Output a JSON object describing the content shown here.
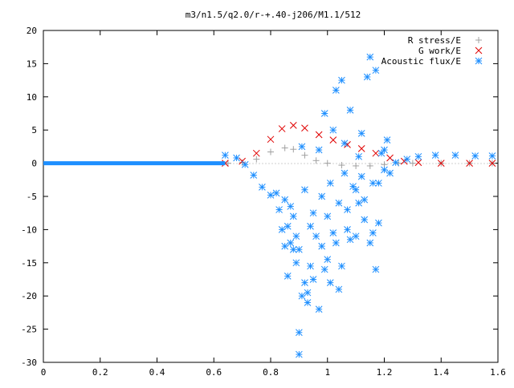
{
  "chart_data": {
    "type": "scatter",
    "title": "m3/n1.5/q2.0/r-+.40-j206/M1.1/512",
    "xlabel": "",
    "ylabel": "",
    "xlim": [
      0,
      1.6
    ],
    "ylim": [
      -30,
      20
    ],
    "x_ticks": [
      0,
      0.2,
      0.4,
      0.6,
      0.8,
      1,
      1.2,
      1.4,
      1.6
    ],
    "x_tick_labels": [
      "0",
      "0.2",
      "0.4",
      "0.6",
      "0.8",
      "1",
      "1.2",
      "1.4",
      "1.6"
    ],
    "y_ticks": [
      -30,
      -25,
      -20,
      -15,
      -10,
      -5,
      0,
      5,
      10,
      15,
      20
    ],
    "y_tick_labels": [
      "-30",
      "-25",
      "-20",
      "-15",
      "-10",
      "-5",
      "0",
      "5",
      "10",
      "15",
      "20"
    ],
    "grid": false,
    "legend_position": "top-right",
    "series": [
      {
        "name": "R stress/E",
        "marker": "plus",
        "color": "#a0a0a0",
        "points": [
          [
            0.65,
            0.0
          ],
          [
            0.7,
            0.1
          ],
          [
            0.75,
            0.6
          ],
          [
            0.8,
            1.7
          ],
          [
            0.85,
            2.3
          ],
          [
            0.88,
            2.1
          ],
          [
            0.92,
            1.2
          ],
          [
            0.96,
            0.4
          ],
          [
            1.0,
            0.0
          ],
          [
            1.05,
            -0.3
          ],
          [
            1.1,
            -0.4
          ],
          [
            1.15,
            -0.4
          ],
          [
            1.2,
            -0.2
          ],
          [
            1.25,
            0.0
          ],
          [
            1.3,
            0.0
          ],
          [
            1.4,
            0.0
          ],
          [
            1.5,
            0.0
          ],
          [
            1.58,
            0.0
          ]
        ]
      },
      {
        "name": "G work/E",
        "marker": "cross",
        "color": "#e00000",
        "points": [
          [
            0.64,
            0.0
          ],
          [
            0.7,
            0.3
          ],
          [
            0.75,
            1.5
          ],
          [
            0.8,
            3.6
          ],
          [
            0.84,
            5.2
          ],
          [
            0.88,
            5.7
          ],
          [
            0.92,
            5.3
          ],
          [
            0.97,
            4.3
          ],
          [
            1.02,
            3.5
          ],
          [
            1.07,
            2.8
          ],
          [
            1.12,
            2.2
          ],
          [
            1.17,
            1.5
          ],
          [
            1.22,
            0.8
          ],
          [
            1.27,
            0.3
          ],
          [
            1.32,
            0.1
          ],
          [
            1.4,
            0.0
          ],
          [
            1.5,
            0.0
          ],
          [
            1.58,
            0.0
          ]
        ]
      },
      {
        "name": "Acoustic flux/E",
        "marker": "star",
        "color": "#1e8fff",
        "line": [
          [
            0.0,
            0.0
          ],
          [
            0.2,
            0.0
          ],
          [
            0.4,
            0.0
          ],
          [
            0.6,
            0.0
          ],
          [
            0.64,
            0.0
          ]
        ],
        "points": [
          [
            0.64,
            1.2
          ],
          [
            0.68,
            0.8
          ],
          [
            0.71,
            -0.2
          ],
          [
            0.74,
            -1.8
          ],
          [
            0.77,
            -3.6
          ],
          [
            0.8,
            -4.8
          ],
          [
            1.24,
            0.1
          ],
          [
            1.28,
            0.6
          ],
          [
            1.32,
            1.0
          ],
          [
            1.38,
            1.2
          ],
          [
            1.45,
            1.2
          ],
          [
            1.52,
            1.1
          ],
          [
            1.58,
            1.1
          ],
          [
            0.82,
            -4.5
          ],
          [
            0.83,
            -7.0
          ],
          [
            0.84,
            -10.0
          ],
          [
            0.85,
            -12.5
          ],
          [
            0.85,
            -5.5
          ],
          [
            0.86,
            -9.5
          ],
          [
            0.86,
            -17.0
          ],
          [
            0.87,
            -12.0
          ],
          [
            0.87,
            -6.5
          ],
          [
            0.88,
            -13.0
          ],
          [
            0.88,
            -8.0
          ],
          [
            0.89,
            -15.0
          ],
          [
            0.89,
            -11.0
          ],
          [
            0.9,
            -25.5
          ],
          [
            0.9,
            -28.8
          ],
          [
            0.9,
            -13.0
          ],
          [
            0.91,
            -20.0
          ],
          [
            0.91,
            2.5
          ],
          [
            0.92,
            -18.0
          ],
          [
            0.92,
            -4.0
          ],
          [
            0.93,
            -19.5
          ],
          [
            0.93,
            -21.0
          ],
          [
            0.94,
            -9.5
          ],
          [
            0.94,
            -15.5
          ],
          [
            0.95,
            -7.5
          ],
          [
            0.95,
            -17.5
          ],
          [
            0.96,
            -11.0
          ],
          [
            0.97,
            -22.0
          ],
          [
            0.97,
            2.0
          ],
          [
            0.98,
            -5.0
          ],
          [
            0.98,
            -12.5
          ],
          [
            0.99,
            -16.0
          ],
          [
            0.99,
            7.5
          ],
          [
            1.0,
            -8.0
          ],
          [
            1.0,
            -14.5
          ],
          [
            1.01,
            -18.0
          ],
          [
            1.01,
            -3.0
          ],
          [
            1.02,
            5.0
          ],
          [
            1.02,
            -10.5
          ],
          [
            1.03,
            11.0
          ],
          [
            1.03,
            -12.0
          ],
          [
            1.04,
            -19.0
          ],
          [
            1.04,
            -6.0
          ],
          [
            1.05,
            12.5
          ],
          [
            1.05,
            -15.5
          ],
          [
            1.06,
            3.0
          ],
          [
            1.06,
            -1.5
          ],
          [
            1.07,
            -10.0
          ],
          [
            1.07,
            -7.0
          ],
          [
            1.08,
            -11.5
          ],
          [
            1.08,
            8.0
          ],
          [
            1.09,
            -3.5
          ],
          [
            1.1,
            -4.0
          ],
          [
            1.1,
            -11.0
          ],
          [
            1.11,
            -6.0
          ],
          [
            1.11,
            1.0
          ],
          [
            1.12,
            -2.0
          ],
          [
            1.12,
            4.5
          ],
          [
            1.13,
            -8.5
          ],
          [
            1.13,
            -5.5
          ],
          [
            1.14,
            13.0
          ],
          [
            1.15,
            -12.0
          ],
          [
            1.15,
            16.0
          ],
          [
            1.16,
            -10.5
          ],
          [
            1.16,
            -3.0
          ],
          [
            1.17,
            14.0
          ],
          [
            1.17,
            -16.0
          ],
          [
            1.18,
            -9.0
          ],
          [
            1.18,
            -3.0
          ],
          [
            1.19,
            1.5
          ],
          [
            1.2,
            -1.0
          ],
          [
            1.2,
            2.0
          ],
          [
            1.21,
            3.5
          ],
          [
            1.22,
            -1.5
          ]
        ]
      }
    ]
  }
}
